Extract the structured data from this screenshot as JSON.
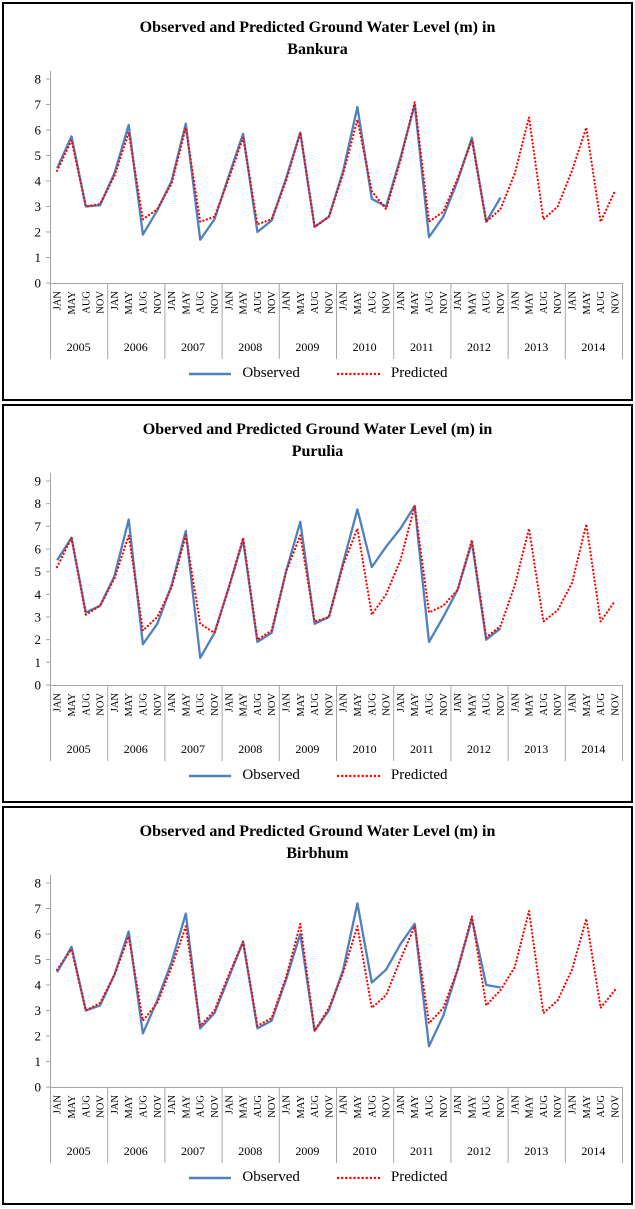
{
  "colors": {
    "observed": "#4f81bd",
    "predicted": "#ff0000",
    "axis": "#a6a6a6",
    "text": "#000000"
  },
  "chart_data": [
    {
      "type": "line",
      "title": "Observed and Predicted Ground Water Level (m) in Bankura",
      "title_line1": "Observed and Predicted Ground Water Level (m) in",
      "title_line2": "Bankura",
      "xlabel": "",
      "ylabel": "",
      "ylim": [
        0,
        8
      ],
      "yticks": [
        0,
        1,
        2,
        3,
        4,
        5,
        6,
        7,
        8
      ],
      "grid": false,
      "legend_position": "bottom",
      "month_labels": [
        "JAN",
        "MAY",
        "AUG",
        "NOV"
      ],
      "years": [
        "2005",
        "2006",
        "2007",
        "2008",
        "2009",
        "2010",
        "2011",
        "2012",
        "2013",
        "2014"
      ],
      "series": [
        {
          "name": "Observed",
          "color": "#4f81bd",
          "style": "solid",
          "values": [
            4.5,
            5.75,
            3.0,
            3.05,
            4.3,
            6.2,
            1.9,
            2.85,
            4.0,
            6.25,
            1.7,
            2.5,
            4.2,
            5.85,
            2.0,
            2.45,
            4.1,
            5.9,
            2.2,
            2.6,
            4.4,
            6.9,
            3.3,
            3.0,
            4.9,
            7.0,
            1.8,
            2.6,
            4.0,
            5.7,
            2.4,
            3.35,
            null,
            null,
            null,
            null,
            null,
            null,
            null,
            null
          ]
        },
        {
          "name": "Predicted",
          "color": "#ff0000",
          "style": "dotted",
          "values": [
            4.4,
            5.6,
            3.0,
            3.1,
            4.2,
            5.9,
            2.5,
            2.9,
            3.9,
            6.1,
            2.4,
            2.6,
            4.1,
            5.7,
            2.3,
            2.5,
            4.0,
            5.9,
            2.2,
            2.6,
            4.3,
            6.4,
            3.6,
            2.9,
            4.8,
            7.1,
            2.4,
            2.8,
            4.1,
            5.6,
            2.4,
            2.9,
            4.3,
            6.5,
            2.5,
            3.0,
            4.4,
            6.1,
            2.4,
            3.6
          ]
        }
      ]
    },
    {
      "type": "line",
      "title": "Oberved and Predicted Ground Water Level (m) in Purulia",
      "title_line1": "Oberved and Predicted Ground Water Level (m) in",
      "title_line2": "Purulia",
      "xlabel": "",
      "ylabel": "",
      "ylim": [
        0,
        9
      ],
      "yticks": [
        0,
        1,
        2,
        3,
        4,
        5,
        6,
        7,
        8,
        9
      ],
      "grid": false,
      "legend_position": "bottom",
      "month_labels": [
        "JAN",
        "MAY",
        "AUG",
        "NOV"
      ],
      "years": [
        "2005",
        "2006",
        "2007",
        "2008",
        "2009",
        "2010",
        "2011",
        "2012",
        "2013",
        "2014"
      ],
      "series": [
        {
          "name": "Observed",
          "color": "#4f81bd",
          "style": "solid",
          "values": [
            5.5,
            6.5,
            3.2,
            3.5,
            4.8,
            7.3,
            1.8,
            2.7,
            4.4,
            6.8,
            1.2,
            2.3,
            4.3,
            6.4,
            1.9,
            2.3,
            5.0,
            7.2,
            2.7,
            3.0,
            5.4,
            7.75,
            5.2,
            6.1,
            6.9,
            7.9,
            1.9,
            3.0,
            4.2,
            6.3,
            2.0,
            2.5,
            null,
            null,
            null,
            null,
            null,
            null,
            null,
            null
          ]
        },
        {
          "name": "Predicted",
          "color": "#ff0000",
          "style": "dotted",
          "values": [
            5.2,
            6.5,
            3.1,
            3.5,
            4.7,
            6.6,
            2.4,
            3.0,
            4.3,
            6.6,
            2.7,
            2.3,
            4.3,
            6.5,
            2.0,
            2.4,
            5.0,
            6.6,
            2.8,
            3.0,
            5.3,
            6.9,
            3.1,
            4.0,
            5.5,
            7.9,
            3.2,
            3.5,
            4.2,
            6.4,
            2.1,
            2.6,
            4.4,
            6.9,
            2.8,
            3.3,
            4.5,
            7.1,
            2.8,
            3.7
          ]
        }
      ]
    },
    {
      "type": "line",
      "title": "Observed and Predicted Ground Water Level (m) in Birbhum",
      "title_line1": "Observed and Predicted  Ground Water Level (m) in",
      "title_line2": "Birbhum",
      "xlabel": "",
      "ylabel": "",
      "ylim": [
        0,
        8
      ],
      "yticks": [
        0,
        1,
        2,
        3,
        4,
        5,
        6,
        7,
        8
      ],
      "grid": false,
      "legend_position": "bottom",
      "month_labels": [
        "JAN",
        "MAY",
        "AUG",
        "NOV"
      ],
      "years": [
        "2005",
        "2006",
        "2007",
        "2008",
        "2009",
        "2010",
        "2011",
        "2012",
        "2013",
        "2014"
      ],
      "series": [
        {
          "name": "Observed",
          "color": "#4f81bd",
          "style": "solid",
          "values": [
            4.5,
            5.5,
            3.0,
            3.2,
            4.4,
            6.1,
            2.1,
            3.4,
            4.9,
            6.8,
            2.3,
            2.9,
            4.3,
            5.7,
            2.3,
            2.6,
            4.2,
            6.0,
            2.2,
            3.0,
            4.6,
            7.2,
            4.1,
            4.6,
            5.6,
            6.4,
            1.6,
            2.8,
            4.6,
            6.6,
            4.0,
            3.9,
            null,
            null,
            null,
            null,
            null,
            null,
            null,
            null
          ]
        },
        {
          "name": "Predicted",
          "color": "#ff0000",
          "style": "dotted",
          "values": [
            4.6,
            5.4,
            3.0,
            3.3,
            4.4,
            5.9,
            2.6,
            3.3,
            4.7,
            6.3,
            2.4,
            3.0,
            4.4,
            5.7,
            2.4,
            2.7,
            4.3,
            6.4,
            2.2,
            3.1,
            4.5,
            6.3,
            3.1,
            3.6,
            5.0,
            6.3,
            2.5,
            3.1,
            4.6,
            6.7,
            3.2,
            3.8,
            4.7,
            6.9,
            2.9,
            3.4,
            4.6,
            6.6,
            3.1,
            3.8
          ]
        }
      ]
    }
  ]
}
